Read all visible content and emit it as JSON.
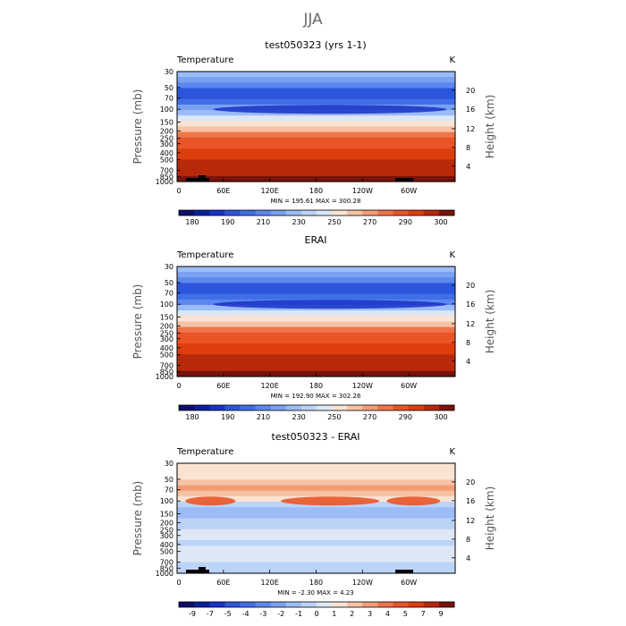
{
  "figure": {
    "title": "JJA"
  },
  "chart_data": [
    {
      "type": "heatmap",
      "title": "test050323 (yrs 1-1)",
      "left_label": "Temperature",
      "right_label": "K",
      "xlabel": "",
      "ylabel": "Pressure (mb)",
      "ylabel_right": "Height (km)",
      "x_ticks": [
        "0",
        "60E",
        "120E",
        "180",
        "120W",
        "60W"
      ],
      "y_ticks": [
        "30",
        "50",
        "70",
        "100",
        "150",
        "200",
        "250",
        "300",
        "400",
        "500",
        "700",
        "850",
        "1000"
      ],
      "height_ticks": [
        "4",
        "8",
        "12",
        "16",
        "20"
      ],
      "stats": "MIN = 195.61   MAX = 300.28",
      "min": 195.61,
      "max": 300.28,
      "colorbar_labels": [
        "180",
        "190",
        "210",
        "230",
        "250",
        "270",
        "290",
        "300"
      ],
      "colorbar_colors": [
        "#0d0d6b",
        "#0a1f99",
        "#1733c7",
        "#2d55dc",
        "#3f6fe6",
        "#5c88ee",
        "#7aa0f2",
        "#9bbcf6",
        "#bcd3f8",
        "#dde7f5",
        "#fbe3d2",
        "#f7c2a4",
        "#f39c76",
        "#ee7549",
        "#e95527",
        "#de3d0d",
        "#b8290a",
        "#7a1208"
      ]
    },
    {
      "type": "heatmap",
      "title": "ERAI",
      "left_label": "Temperature",
      "right_label": "K",
      "xlabel": "",
      "ylabel": "Pressure (mb)",
      "ylabel_right": "Height (km)",
      "x_ticks": [
        "0",
        "60E",
        "120E",
        "180",
        "120W",
        "60W"
      ],
      "y_ticks": [
        "30",
        "50",
        "70",
        "100",
        "150",
        "200",
        "250",
        "300",
        "400",
        "500",
        "700",
        "850",
        "1000"
      ],
      "height_ticks": [
        "4",
        "8",
        "12",
        "16",
        "20"
      ],
      "stats": "MIN = 192.90   MAX = 302.26",
      "min": 192.9,
      "max": 302.26,
      "colorbar_labels": [
        "180",
        "190",
        "210",
        "230",
        "250",
        "270",
        "290",
        "300"
      ],
      "colorbar_colors": [
        "#0d0d6b",
        "#0a1f99",
        "#1733c7",
        "#2d55dc",
        "#3f6fe6",
        "#5c88ee",
        "#7aa0f2",
        "#9bbcf6",
        "#bcd3f8",
        "#dde7f5",
        "#fbe3d2",
        "#f7c2a4",
        "#f39c76",
        "#ee7549",
        "#e95527",
        "#de3d0d",
        "#b8290a",
        "#7a1208"
      ]
    },
    {
      "type": "heatmap",
      "title": "test050323 - ERAI",
      "left_label": "Temperature",
      "right_label": "K",
      "xlabel": "",
      "ylabel": "Pressure (mb)",
      "ylabel_right": "Height (km)",
      "x_ticks": [
        "0",
        "60E",
        "120E",
        "180",
        "120W",
        "60W"
      ],
      "y_ticks": [
        "30",
        "50",
        "70",
        "100",
        "150",
        "200",
        "250",
        "300",
        "400",
        "500",
        "700",
        "850",
        "1000"
      ],
      "height_ticks": [
        "4",
        "8",
        "12",
        "16",
        "20"
      ],
      "stats": "MIN = -2.30   MAX = 4.23",
      "min": -2.3,
      "max": 4.23,
      "colorbar_labels": [
        "-9",
        "-7",
        "-5",
        "-4",
        "-3",
        "-2",
        "-1",
        "0",
        "1",
        "2",
        "3",
        "4",
        "5",
        "7",
        "9"
      ],
      "colorbar_colors": [
        "#0d0d6b",
        "#0a1f99",
        "#1733c7",
        "#2d55dc",
        "#3f6fe6",
        "#5c88ee",
        "#7aa0f2",
        "#9bbcf6",
        "#bcd3f8",
        "#dde7f5",
        "#fbe3d2",
        "#f7c2a4",
        "#f39c76",
        "#ee7549",
        "#e95527",
        "#de3d0d",
        "#b8290a",
        "#7a1208"
      ]
    }
  ]
}
